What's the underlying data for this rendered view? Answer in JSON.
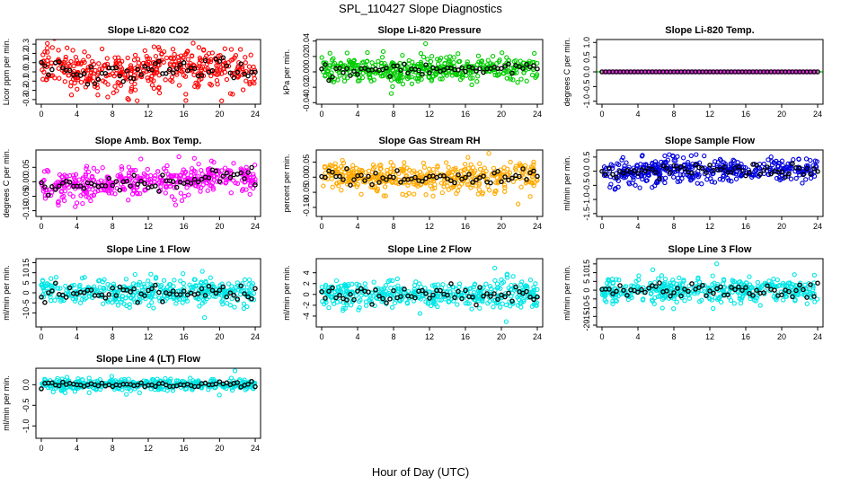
{
  "figure": {
    "title": "SPL_110427  Slope Diagnostics",
    "xlabel": "Hour of Day (UTC)"
  },
  "chart_data": [
    {
      "id": "co2",
      "type": "scatter",
      "title": "Slope Li-820 CO2",
      "ylabel": "Licor ppm per min.",
      "xlim": [
        -0.6,
        24.6
      ],
      "ylim": [
        -0.35,
        0.35
      ],
      "xticks": [
        0,
        4,
        8,
        12,
        16,
        20,
        24
      ],
      "yticks": [
        {
          "v": -0.3,
          "label": "-0.3"
        },
        {
          "v": -0.2,
          "label": "-0.2"
        },
        {
          "v": -0.1,
          "label": "-0.1"
        },
        {
          "v": 0,
          "label": "0.0"
        },
        {
          "v": 0.1,
          "label": "0.1"
        },
        {
          "v": 0.2,
          "label": "0.2"
        },
        {
          "v": 0.3,
          "label": "0.3"
        }
      ],
      "point_color": "#ff0000",
      "mean_color": "#000000",
      "guide": null,
      "spread": 0.11,
      "noise": [
        [
          0.5,
          0.05
        ],
        [
          6,
          -0.04
        ],
        [
          14,
          0.05
        ],
        [
          20,
          0.04
        ],
        [
          23,
          -0.02
        ]
      ]
    },
    {
      "id": "pressure",
      "type": "scatter",
      "title": "Slope Li-820 Pressure",
      "ylabel": "kPa per min.",
      "xlim": [
        -0.6,
        24.6
      ],
      "ylim": [
        -0.042,
        0.042
      ],
      "xticks": [
        0,
        4,
        8,
        12,
        16,
        20,
        24
      ],
      "yticks": [
        {
          "v": -0.04,
          "label": "-0.04"
        },
        {
          "v": -0.02,
          "label": "-0.02"
        },
        {
          "v": 0,
          "label": "0.00"
        },
        {
          "v": 0.02,
          "label": "0.02"
        },
        {
          "v": 0.04,
          "label": "0.04"
        }
      ],
      "point_color": "#00cc00",
      "mean_color": "#000000",
      "guide": null,
      "spread": 0.008,
      "noise": [
        [
          0.5,
          0.003
        ],
        [
          8,
          0.002
        ],
        [
          14,
          0.004
        ],
        [
          20,
          0.004
        ],
        [
          24,
          0.003
        ]
      ]
    },
    {
      "id": "temp",
      "type": "scatter",
      "title": "Slope Li-820 Temp.",
      "ylabel": "degrees C per min.",
      "xlim": [
        -0.6,
        24.6
      ],
      "ylim": [
        -1.1,
        1.1
      ],
      "xticks": [
        0,
        4,
        8,
        12,
        16,
        20,
        24
      ],
      "yticks": [
        {
          "v": -1,
          "label": "-1.0"
        },
        {
          "v": -0.5,
          "label": "-0.5"
        },
        {
          "v": 0,
          "label": "0.0"
        },
        {
          "v": 0.5,
          "label": "0.5"
        },
        {
          "v": 1,
          "label": "1.0"
        }
      ],
      "point_color": "#ff00ff",
      "mean_color": "#000000",
      "guide": "#00cc00",
      "spread": 0,
      "noise": [
        [
          0,
          0
        ],
        [
          24,
          0
        ]
      ]
    },
    {
      "id": "ambbox",
      "type": "scatter",
      "title": "Slope Amb. Box Temp.",
      "ylabel": "degrees C per min.",
      "xlim": [
        -0.6,
        24.6
      ],
      "ylim": [
        -0.12,
        0.11
      ],
      "xticks": [
        0,
        4,
        8,
        12,
        16,
        20,
        24
      ],
      "yticks": [
        {
          "v": -0.1,
          "label": "-0.10"
        },
        {
          "v": -0.05,
          "label": "-0.05"
        },
        {
          "v": 0,
          "label": "0.00"
        },
        {
          "v": 0.05,
          "label": "0.05"
        }
      ],
      "point_color": "#ff00ff",
      "mean_color": "#000000",
      "guide": null,
      "spread": 0.025,
      "noise": [
        [
          0,
          -0.02
        ],
        [
          4,
          -0.015
        ],
        [
          6,
          -0.01
        ],
        [
          10,
          0
        ],
        [
          14,
          -0.005
        ],
        [
          17,
          0.01
        ],
        [
          20,
          0.015
        ],
        [
          24,
          0.01
        ]
      ]
    },
    {
      "id": "gasrh",
      "type": "scatter",
      "title": "Slope Gas Stream RH",
      "ylabel": "percent per min.",
      "xlim": [
        -0.6,
        24.6
      ],
      "ylim": [
        -0.13,
        0.09
      ],
      "xticks": [
        0,
        4,
        8,
        12,
        16,
        20,
        24
      ],
      "yticks": [
        {
          "v": -0.1,
          "label": "-0.10"
        },
        {
          "v": -0.05,
          "label": "-0.05"
        },
        {
          "v": 0,
          "label": "0.00"
        },
        {
          "v": 0.05,
          "label": "0.05"
        }
      ],
      "point_color": "#ffaa00",
      "mean_color": "#000000",
      "guide": null,
      "spread": 0.025,
      "noise": [
        [
          0,
          0.01
        ],
        [
          6,
          0
        ],
        [
          12,
          -0.005
        ],
        [
          18,
          0
        ],
        [
          24,
          0.005
        ]
      ]
    },
    {
      "id": "sampleflow",
      "type": "scatter",
      "title": "Slope Sample Flow",
      "ylabel": "ml/min per min.",
      "xlim": [
        -0.6,
        24.6
      ],
      "ylim": [
        -1.6,
        0.75
      ],
      "xticks": [
        0,
        4,
        8,
        12,
        16,
        20,
        24
      ],
      "yticks": [
        {
          "v": -1.5,
          "label": "-1.5"
        },
        {
          "v": -1,
          "label": "-1.0"
        },
        {
          "v": -0.5,
          "label": "-0.5"
        },
        {
          "v": 0,
          "label": "0.0"
        },
        {
          "v": 0.5,
          "label": "0.5"
        }
      ],
      "point_color": "#0000dd",
      "mean_color": "#000000",
      "guide": null,
      "spread": 0.22,
      "noise": [
        [
          0,
          -0.15
        ],
        [
          4,
          0
        ],
        [
          8,
          0.1
        ],
        [
          12,
          0.05
        ],
        [
          16,
          0.05
        ],
        [
          20,
          0
        ],
        [
          24,
          0.05
        ]
      ]
    },
    {
      "id": "line1",
      "type": "scatter",
      "title": "Slope Line 1 Flow",
      "ylabel": "ml/min per min.",
      "xlim": [
        -0.6,
        24.6
      ],
      "ylim": [
        -17,
        17
      ],
      "xticks": [
        0,
        4,
        8,
        12,
        16,
        20,
        24
      ],
      "yticks": [
        {
          "v": -10,
          "label": "-10"
        },
        {
          "v": -5,
          "label": "-5"
        },
        {
          "v": 0,
          "label": "0"
        },
        {
          "v": 5,
          "label": "5"
        },
        {
          "v": 10,
          "label": "10"
        },
        {
          "v": 15,
          "label": "15"
        }
      ],
      "point_color": "#00e6e6",
      "mean_color": "#000000",
      "guide": null,
      "spread": 3.2,
      "noise": [
        [
          0,
          0
        ],
        [
          24,
          0.5
        ]
      ]
    },
    {
      "id": "line2",
      "type": "scatter",
      "title": "Slope Line 2 Flow",
      "ylabel": "ml/min per min.",
      "xlim": [
        -0.6,
        24.6
      ],
      "ylim": [
        -6,
        6.6
      ],
      "xticks": [
        0,
        4,
        8,
        12,
        16,
        20,
        24
      ],
      "yticks": [
        {
          "v": -4,
          "label": "-4"
        },
        {
          "v": -2,
          "label": "-2"
        },
        {
          "v": 0,
          "label": "0"
        },
        {
          "v": 2,
          "label": "2"
        },
        {
          "v": 4,
          "label": "4"
        }
      ],
      "point_color": "#00e6e6",
      "mean_color": "#000000",
      "guide": null,
      "spread": 1.2,
      "noise": [
        [
          0,
          0
        ],
        [
          24,
          0
        ]
      ]
    },
    {
      "id": "line3",
      "type": "scatter",
      "title": "Slope Line 3 Flow",
      "ylabel": "ml/min per min.",
      "xlim": [
        -0.6,
        24.6
      ],
      "ylim": [
        -21,
        18
      ],
      "xticks": [
        0,
        4,
        8,
        12,
        16,
        20,
        24
      ],
      "yticks": [
        {
          "v": -20,
          "label": "-20"
        },
        {
          "v": -15,
          "label": "-15"
        },
        {
          "v": -10,
          "label": "-10"
        },
        {
          "v": -5,
          "label": "-5"
        },
        {
          "v": 0,
          "label": "0"
        },
        {
          "v": 5,
          "label": "5"
        },
        {
          "v": 10,
          "label": "10"
        },
        {
          "v": 15,
          "label": "15"
        }
      ],
      "point_color": "#00e6e6",
      "mean_color": "#000000",
      "guide": null,
      "spread": 3.5,
      "noise": [
        [
          0,
          0
        ],
        [
          24,
          0
        ]
      ]
    },
    {
      "id": "line4",
      "type": "scatter",
      "title": "Slope Line 4 (LT) Flow",
      "ylabel": "ml/min per min.",
      "xlim": [
        -0.6,
        24.6
      ],
      "ylim": [
        -1.3,
        0.4
      ],
      "xticks": [
        0,
        4,
        8,
        12,
        16,
        20,
        24
      ],
      "yticks": [
        {
          "v": -1,
          "label": "-1.0"
        },
        {
          "v": -0.5,
          "label": "-0.5"
        },
        {
          "v": 0,
          "label": "0.0"
        }
      ],
      "point_color": "#00e6e6",
      "mean_color": "#000000",
      "guide": null,
      "spread": 0.06,
      "noise": [
        [
          0,
          0
        ],
        [
          24,
          0
        ]
      ]
    }
  ]
}
